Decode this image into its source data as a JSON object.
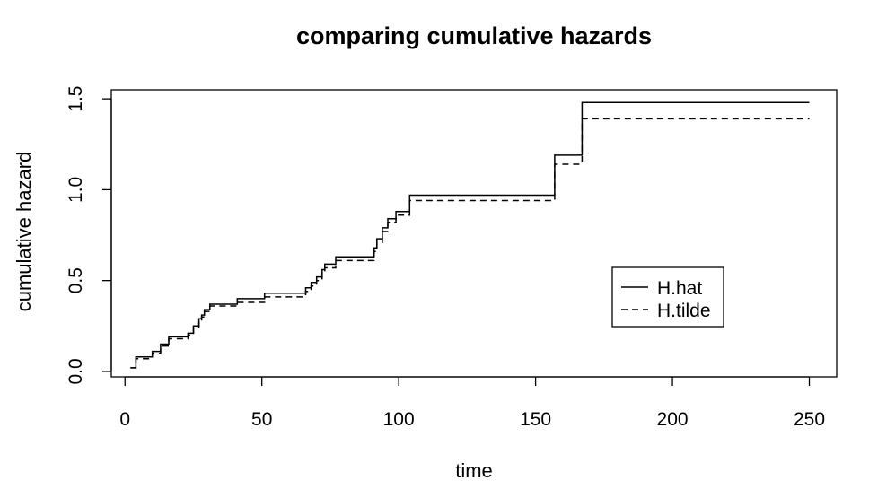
{
  "chart_data": {
    "type": "line",
    "title": "comparing cumulative hazards",
    "xlabel": "time",
    "ylabel": "cumulative hazard",
    "xlim": [
      -5,
      260
    ],
    "ylim": [
      -0.03,
      1.55
    ],
    "x_ticks": [
      0,
      50,
      100,
      150,
      200,
      250
    ],
    "x_tick_labels": [
      "0",
      "50",
      "100",
      "150",
      "200",
      "250"
    ],
    "y_ticks": [
      0.0,
      0.5,
      1.0,
      1.5
    ],
    "y_tick_labels": [
      "0.0",
      "0.5",
      "1.0",
      "1.5"
    ],
    "grid": false,
    "legend_position": "right",
    "series": [
      {
        "name": "H.hat",
        "line_style": "solid",
        "step": true,
        "x": [
          2,
          4,
          10,
          13,
          16,
          23,
          25,
          27,
          28,
          29,
          31,
          33,
          41,
          51,
          66,
          68,
          70,
          72,
          73,
          77,
          91,
          92,
          94,
          96,
          99,
          104,
          157,
          167,
          250
        ],
        "y": [
          0.02,
          0.08,
          0.11,
          0.15,
          0.19,
          0.21,
          0.25,
          0.29,
          0.31,
          0.34,
          0.37,
          0.37,
          0.4,
          0.43,
          0.46,
          0.49,
          0.52,
          0.56,
          0.59,
          0.63,
          0.68,
          0.73,
          0.79,
          0.84,
          0.88,
          0.97,
          1.19,
          1.48,
          1.48
        ]
      },
      {
        "name": "H.tilde",
        "line_style": "dashed",
        "step": true,
        "x": [
          2,
          4,
          10,
          13,
          16,
          23,
          25,
          27,
          28,
          29,
          31,
          33,
          41,
          51,
          66,
          68,
          70,
          72,
          73,
          77,
          91,
          92,
          94,
          96,
          99,
          104,
          157,
          167,
          250
        ],
        "y": [
          0.02,
          0.07,
          0.1,
          0.14,
          0.18,
          0.2,
          0.24,
          0.27,
          0.3,
          0.33,
          0.36,
          0.36,
          0.38,
          0.41,
          0.44,
          0.47,
          0.5,
          0.54,
          0.57,
          0.61,
          0.66,
          0.71,
          0.77,
          0.82,
          0.86,
          0.94,
          1.14,
          1.39,
          1.39
        ]
      }
    ]
  },
  "colors": {
    "line": "#000000",
    "background": "#ffffff"
  }
}
